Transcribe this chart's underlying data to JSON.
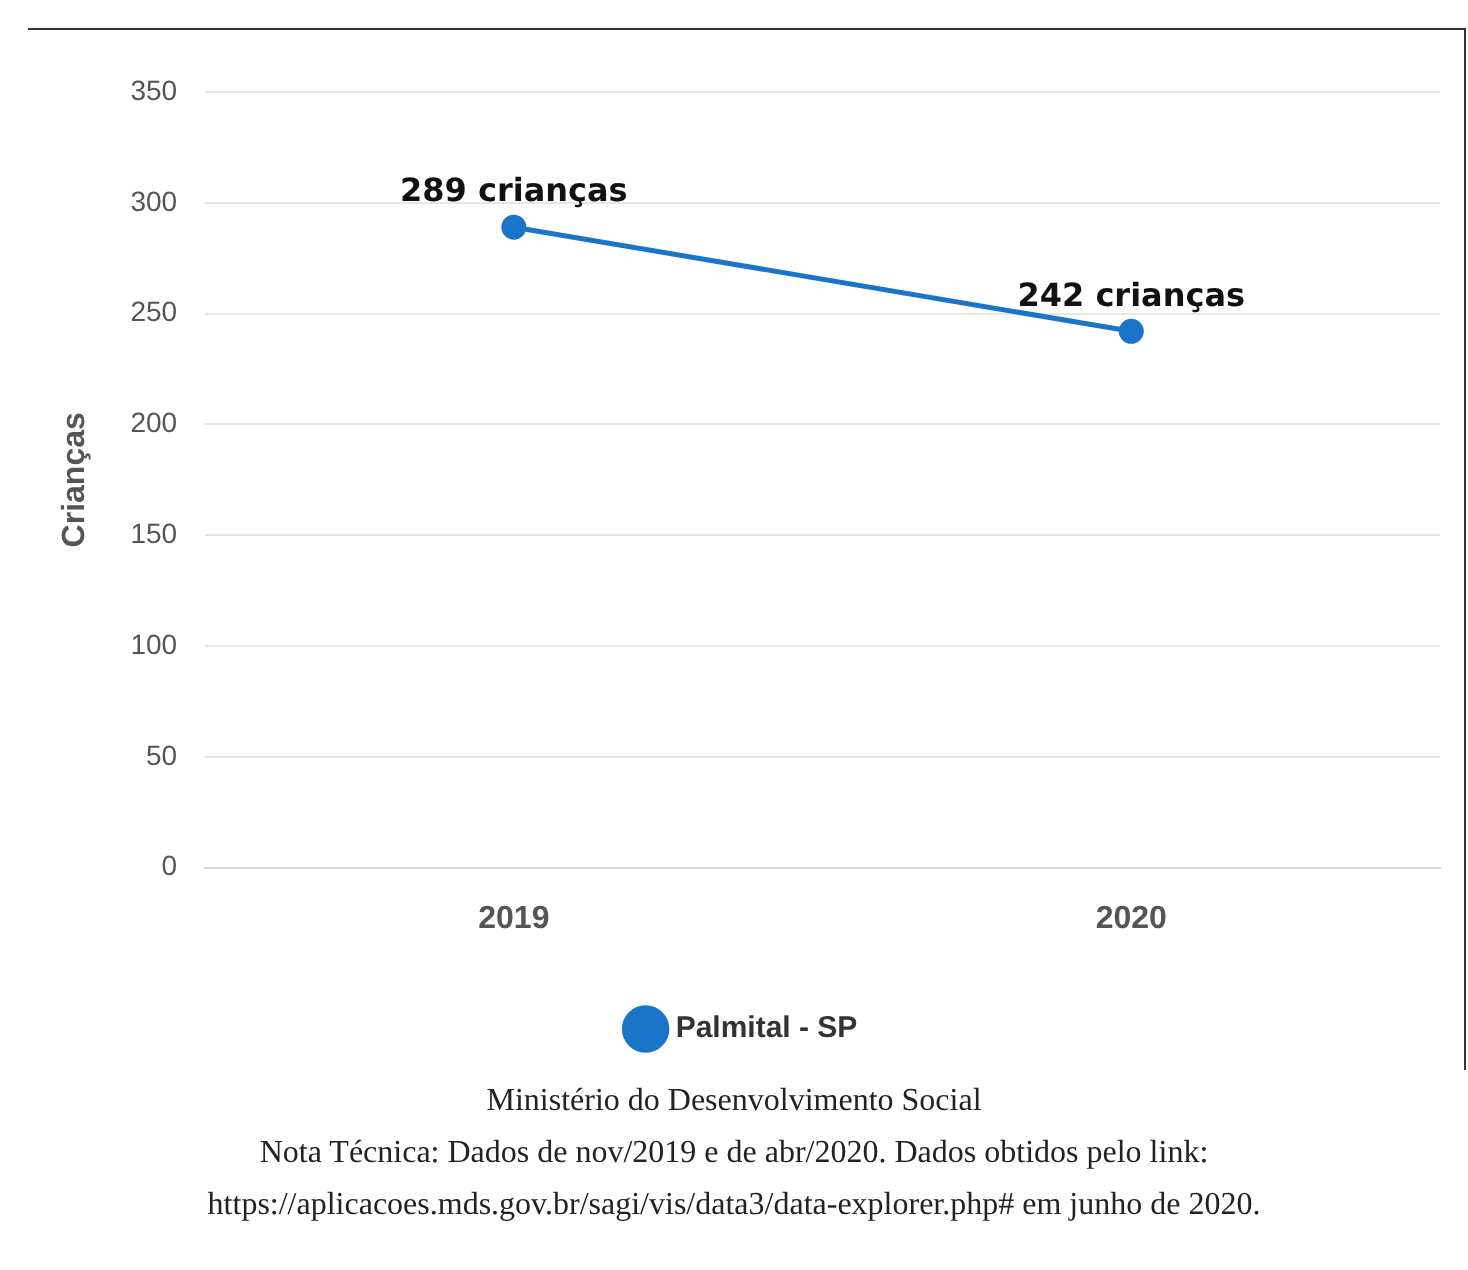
{
  "chart_data": {
    "type": "line",
    "ylabel": "Crianças",
    "categories": [
      "2019",
      "2020"
    ],
    "series": [
      {
        "name": "Palmital - SP",
        "color": "#1a74c9",
        "values": [
          289,
          242
        ],
        "value_labels": [
          "289 crianças",
          "242 crianças"
        ]
      }
    ],
    "ylim": [
      0,
      350
    ],
    "yticks": [
      0,
      50,
      100,
      150,
      200,
      250,
      300,
      350
    ],
    "grid": "y",
    "legend": "bottom",
    "marker": "circle",
    "line_style": "solid",
    "annotations": [
      "Ministério do Desenvolvimento Social",
      "Nota Técnica: Dados de nov/2019 e de abr/2020. Dados obtidos pelo link:",
      "https://aplicacoes.mds.gov.br/sagi/vis/data3/data-explorer.php# em junho de 2020."
    ]
  }
}
